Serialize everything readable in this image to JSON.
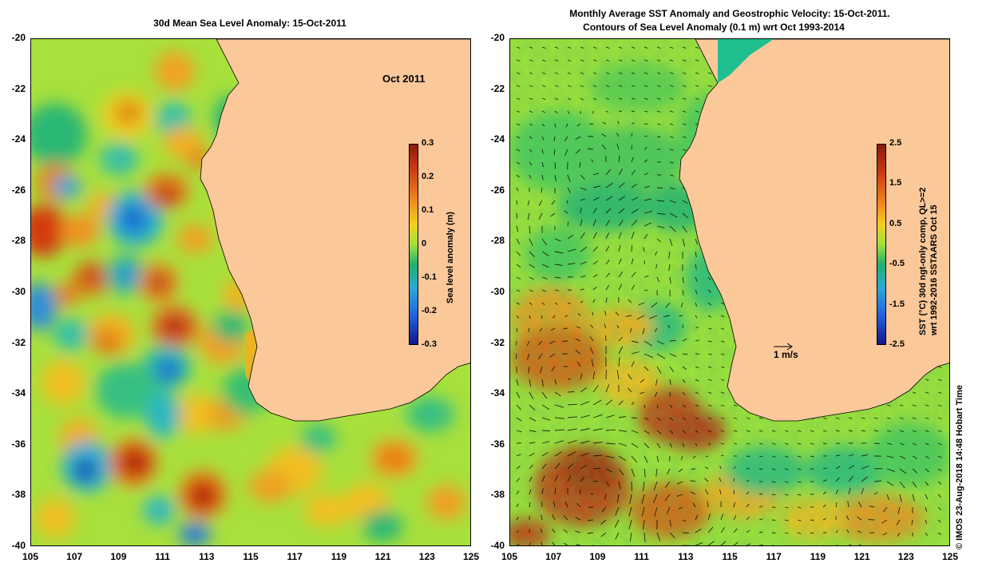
{
  "left_panel": {
    "title": "30d Mean Sea Level Anomaly: 15-Oct-2011",
    "date_label": "Oct 2011",
    "yticks": [
      "-20",
      "-22",
      "-24",
      "-26",
      "-28",
      "-30",
      "-32",
      "-34",
      "-36",
      "-38",
      "-40"
    ],
    "xticks": [
      "105",
      "107",
      "109",
      "111",
      "113",
      "115",
      "117",
      "119",
      "121",
      "123",
      "125"
    ],
    "colorbar_label": "Sea level anomaly (m)",
    "colorbar_ticks": [
      "0.3",
      "0.2",
      "0.1",
      "0",
      "-0.1",
      "-0.2",
      "-0.3"
    ]
  },
  "right_panel": {
    "title_line1": "Monthly Average SST Anomaly  and Geostrophic Velocity: 15-Oct-2011.",
    "title_line2": "Contours of Sea Level Anomaly (0.1 m) wrt Oct 1993-2014",
    "yticks": [
      "-20",
      "-22",
      "-24",
      "-26",
      "-28",
      "-30",
      "-32",
      "-34",
      "-36",
      "-38",
      "-40"
    ],
    "xticks": [
      "105",
      "107",
      "109",
      "111",
      "113",
      "115",
      "117",
      "119",
      "121",
      "123",
      "125"
    ],
    "colorbar_label_line1": "SST (°C) 30d ngt-only comp, QL>=2",
    "colorbar_label_line2": "wrt 1992-2016 SSTAARS Oct 15",
    "colorbar_ticks": [
      "2.5",
      "1.5",
      "0.5",
      "-0.5",
      "-1.5",
      "-2.5"
    ],
    "scale_arrow_label": "1 m/s"
  },
  "credit": "© IMOS 23-Aug-2018 14:48 Hobart Time",
  "colors": {
    "land": "#fbc89a",
    "ocean_base": "#9fe23a",
    "coast_green": "#1fbf8f"
  },
  "map_extent": {
    "lon": [
      105,
      125
    ],
    "lat": [
      -40,
      -20
    ]
  }
}
